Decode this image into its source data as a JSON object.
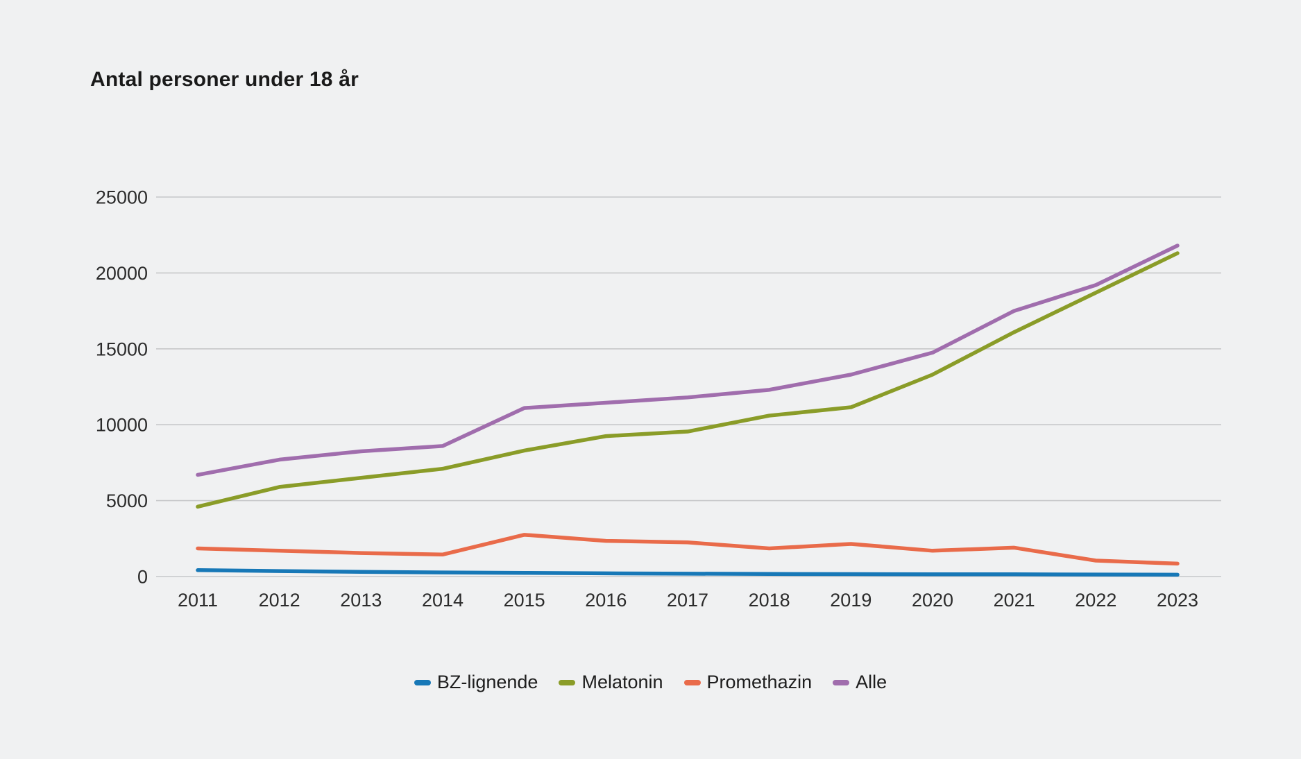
{
  "title": "Antal personer under 18 år",
  "colors": {
    "background": "#f0f1f2",
    "grid": "#c6c7c9",
    "title_text": "#1a1a1a",
    "tick_text": "#2b2b2b"
  },
  "chart_data": {
    "type": "line",
    "title": "Antal personer under 18 år",
    "xlabel": "",
    "ylabel": "",
    "categories": [
      "2011",
      "2012",
      "2013",
      "2014",
      "2015",
      "2016",
      "2017",
      "2018",
      "2019",
      "2020",
      "2021",
      "2022",
      "2023"
    ],
    "ylim": [
      0,
      25000
    ],
    "yticks": [
      0,
      5000,
      10000,
      15000,
      20000,
      25000
    ],
    "grid": true,
    "legend_position": "bottom",
    "series": [
      {
        "name": "BZ-lignende",
        "color": "#1778b7",
        "values": [
          420,
          360,
          310,
          270,
          240,
          210,
          190,
          170,
          160,
          150,
          150,
          130,
          120
        ]
      },
      {
        "name": "Melatonin",
        "color": "#8a9c28",
        "values": [
          4600,
          5900,
          6500,
          7100,
          8300,
          9250,
          9550,
          10600,
          11150,
          13300,
          16100,
          18700,
          21300
        ]
      },
      {
        "name": "Promethazin",
        "color": "#e96b4a",
        "values": [
          1850,
          1700,
          1550,
          1450,
          2750,
          2350,
          2250,
          1850,
          2150,
          1700,
          1900,
          1050,
          850
        ]
      },
      {
        "name": "Alle",
        "color": "#a06dad",
        "values": [
          6700,
          7700,
          8250,
          8600,
          11100,
          11450,
          11800,
          12300,
          13300,
          14750,
          17500,
          19200,
          21800
        ]
      }
    ]
  }
}
